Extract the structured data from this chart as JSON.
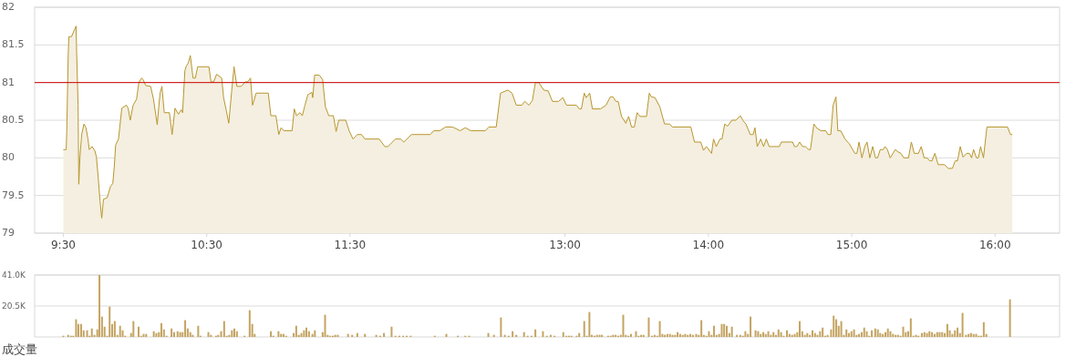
{
  "chart_data": [
    {
      "type": "area",
      "color": "#b8962e",
      "xlim": [
        9.3,
        16.45
      ],
      "ylim": [
        79,
        82
      ],
      "xticks": [
        {
          "value": 9.5,
          "label": "9:30"
        },
        {
          "value": 10.5,
          "label": "10:30"
        },
        {
          "value": 11.5,
          "label": "11:30"
        },
        {
          "value": 13,
          "label": "13:00"
        },
        {
          "value": 14,
          "label": "14:00"
        },
        {
          "value": 15,
          "label": "15:00"
        },
        {
          "value": 16,
          "label": "16:00"
        }
      ],
      "yticks": [
        79,
        79.5,
        80,
        80.5,
        81,
        81.5,
        82
      ],
      "grid": "y",
      "ref_lines": [
        {
          "axis": "y",
          "value": 81,
          "color": "#cc0000"
        }
      ],
      "x": [
        9.5,
        9.52,
        9.524,
        9.534,
        9.539,
        9.557,
        9.589,
        9.593,
        9.603,
        9.608,
        9.616,
        9.628,
        9.644,
        9.658,
        9.672,
        9.681,
        9.701,
        9.721,
        9.731,
        9.743,
        9.756,
        9.768,
        9.78,
        9.806,
        9.829,
        9.845,
        9.855,
        9.865,
        9.885,
        9.908,
        9.94,
        9.952,
        9.967,
        9.987,
        10.011,
        10.027,
        10.046,
        10.056,
        10.076,
        10.109,
        10.129,
        10.155,
        10.165,
        10.175,
        10.188,
        10.204,
        10.24,
        10.259,
        10.279,
        10.303,
        10.322,
        10.332,
        10.348,
        10.358,
        10.372,
        10.386,
        10.405,
        10.421,
        10.437,
        10.516,
        10.53,
        10.549,
        10.569,
        10.605,
        10.618,
        10.638,
        10.654,
        10.674,
        10.691,
        10.711,
        10.741,
        10.77,
        10.786,
        10.806,
        10.82,
        10.845,
        10.93,
        10.948,
        10.983,
        11.003,
        11.019,
        11.038,
        11.096,
        11.111,
        11.127,
        11.151,
        11.167,
        11.186,
        11.206,
        11.234,
        11.24,
        11.253,
        11.285,
        11.309,
        11.328,
        11.352,
        11.384,
        11.403,
        11.421,
        11.47,
        11.494,
        11.521,
        11.551,
        11.58,
        11.604,
        11.704,
        11.743,
        11.764,
        11.817,
        11.853,
        11.875,
        11.929,
        12.06,
        12.084,
        12.127,
        12.166,
        12.216,
        12.267,
        12.304,
        12.343,
        12.444,
        12.468,
        12.52,
        12.55,
        12.601,
        12.63,
        12.66,
        12.699,
        12.72,
        12.748,
        12.772,
        12.793,
        12.817,
        12.852,
        12.882,
        12.912,
        12.955,
        12.985,
        13.01,
        13.079,
        13.099,
        13.114,
        13.134,
        13.148,
        13.172,
        13.191,
        13.247,
        13.286,
        13.316,
        13.335,
        13.355,
        13.371,
        13.394,
        13.424,
        13.444,
        13.464,
        13.483,
        13.503,
        13.523,
        13.568,
        13.588,
        13.602,
        13.627,
        13.661,
        13.694,
        13.73,
        13.749,
        13.878,
        13.903,
        13.947,
        13.966,
        13.986,
        14.022,
        14.036,
        14.055,
        14.081,
        14.095,
        14.114,
        14.134,
        14.164,
        14.193,
        14.223,
        14.243,
        14.262,
        14.292,
        14.312,
        14.325,
        14.341,
        14.365,
        14.385,
        14.404,
        14.424,
        14.495,
        14.509,
        14.588,
        14.601,
        14.617,
        14.637,
        14.657,
        14.677,
        14.7,
        14.712,
        14.736,
        14.759,
        14.785,
        14.819,
        14.834,
        14.854,
        14.87,
        14.89,
        14.903,
        14.923,
        14.953,
        14.982,
        15.022,
        15.036,
        15.051,
        15.071,
        15.091,
        15.107,
        15.126,
        15.146,
        15.166,
        15.18,
        15.199,
        15.219,
        15.233,
        15.249,
        15.268,
        15.304,
        15.323,
        15.343,
        15.363,
        15.396,
        15.416,
        15.436,
        15.465,
        15.485,
        15.505,
        15.525,
        15.544,
        15.56,
        15.58,
        15.603,
        15.647,
        15.673,
        15.702,
        15.722,
        15.738,
        15.757,
        15.777,
        15.801,
        15.821,
        15.836,
        15.85,
        15.87,
        15.884,
        15.899,
        15.919,
        15.943,
        16.087,
        16.107,
        16.12
      ],
      "values": [
        80.11,
        80.11,
        80.35,
        81.36,
        81.61,
        81.61,
        81.75,
        81.4,
        80.7,
        79.65,
        80.01,
        80.31,
        80.45,
        80.4,
        80.25,
        80.11,
        80.15,
        80.09,
        80.01,
        79.75,
        79.43,
        79.2,
        79.45,
        79.47,
        79.62,
        79.66,
        79.87,
        80.17,
        80.25,
        80.66,
        80.7,
        80.66,
        80.5,
        80.7,
        80.78,
        81.0,
        81.06,
        81.04,
        80.96,
        80.95,
        80.78,
        80.44,
        80.66,
        80.86,
        80.95,
        80.6,
        80.6,
        80.31,
        80.66,
        80.58,
        80.64,
        80.6,
        81.16,
        81.22,
        81.26,
        81.36,
        81.06,
        81.06,
        81.21,
        81.21,
        81.01,
        81.01,
        81.11,
        81.06,
        80.8,
        80.62,
        80.46,
        80.88,
        81.21,
        80.95,
        80.95,
        81.01,
        81.01,
        81.06,
        80.7,
        80.86,
        80.86,
        80.56,
        80.56,
        80.31,
        80.4,
        80.36,
        80.36,
        80.65,
        80.56,
        80.6,
        80.56,
        80.7,
        80.84,
        80.87,
        80.8,
        81.1,
        81.1,
        81.04,
        80.68,
        80.56,
        80.56,
        80.35,
        80.5,
        80.5,
        80.36,
        80.25,
        80.31,
        80.31,
        80.25,
        80.25,
        80.15,
        80.15,
        80.25,
        80.25,
        80.21,
        80.31,
        80.31,
        80.36,
        80.36,
        80.41,
        80.41,
        80.36,
        80.4,
        80.36,
        80.36,
        80.41,
        80.41,
        80.86,
        80.9,
        80.86,
        80.7,
        80.7,
        80.75,
        80.7,
        80.76,
        81.0,
        81.0,
        80.9,
        80.89,
        80.75,
        80.75,
        80.8,
        80.7,
        80.7,
        80.65,
        80.65,
        80.86,
        80.8,
        80.86,
        80.65,
        80.65,
        80.7,
        80.81,
        80.81,
        80.75,
        80.75,
        80.55,
        80.46,
        80.55,
        80.41,
        80.41,
        80.6,
        80.55,
        80.55,
        80.86,
        80.81,
        80.8,
        80.68,
        80.45,
        80.45,
        80.41,
        80.41,
        80.21,
        80.21,
        80.1,
        80.15,
        80.06,
        80.25,
        80.15,
        80.25,
        80.25,
        80.45,
        80.42,
        80.5,
        80.5,
        80.56,
        80.49,
        80.45,
        80.31,
        80.31,
        80.4,
        80.15,
        80.25,
        80.15,
        80.25,
        80.15,
        80.15,
        80.21,
        80.21,
        80.15,
        80.15,
        80.21,
        80.15,
        80.15,
        80.11,
        80.11,
        80.45,
        80.39,
        80.36,
        80.36,
        80.31,
        80.31,
        80.7,
        80.81,
        80.36,
        80.36,
        80.25,
        80.19,
        80.06,
        80.06,
        80.21,
        80.0,
        80.15,
        80.21,
        80.0,
        80.15,
        80.0,
        80.0,
        80.11,
        80.11,
        80.15,
        80.11,
        80.0,
        80.11,
        80.08,
        80.06,
        80.0,
        80.0,
        80.21,
        80.06,
        80.06,
        80.15,
        80.0,
        80.0,
        79.96,
        79.96,
        80.06,
        79.91,
        79.91,
        79.86,
        79.86,
        79.96,
        79.96,
        80.15,
        80.01,
        80.06,
        80.06,
        80.0,
        80.11,
        80.0,
        80.0,
        80.15,
        80.0,
        80.41,
        80.41,
        80.31,
        80.31
      ]
    },
    {
      "type": "bar",
      "color": "#c4a462",
      "xlim": [
        9.3,
        16.45
      ],
      "ylim": [
        0,
        41000
      ],
      "yticks": [
        {
          "value": 20500,
          "label": "20.5K"
        },
        {
          "value": 41000,
          "label": "41.0K"
        }
      ],
      "grid": "y",
      "tick_labels": "y",
      "xlabel": "成交量",
      "x": [
        9.5,
        9.534,
        9.553,
        9.569,
        9.589,
        9.605,
        9.624,
        9.642,
        9.666,
        9.683,
        9.699,
        9.717,
        9.737,
        9.752,
        9.77,
        9.788,
        9.806,
        9.823,
        9.841,
        9.859,
        9.877,
        9.896,
        9.914,
        9.932,
        9.973,
        9.989,
        10.025,
        10.042,
        10.06,
        10.078,
        10.131,
        10.149,
        10.167,
        10.184,
        10.202,
        10.22,
        10.255,
        10.273,
        10.297,
        10.315,
        10.332,
        10.35,
        10.368,
        10.386,
        10.403,
        10.441,
        10.457,
        10.512,
        10.53,
        10.565,
        10.581,
        10.601,
        10.622,
        10.64,
        10.658,
        10.676,
        10.693,
        10.711,
        10.764,
        10.8,
        10.818,
        10.835,
        10.948,
        10.965,
        11.001,
        11.019,
        11.036,
        11.054,
        11.107,
        11.125,
        11.143,
        11.161,
        11.179,
        11.196,
        11.214,
        11.238,
        11.255,
        11.309,
        11.326,
        11.344,
        11.362,
        11.38,
        11.397,
        11.415,
        11.486,
        11.515,
        11.551,
        11.604,
        11.683,
        11.71,
        11.737,
        11.79,
        11.817,
        11.844,
        11.871,
        11.896,
        11.923,
        12.091,
        12.172,
        12.252,
        12.304,
        12.331,
        12.465,
        12.504,
        12.553,
        12.58,
        12.607,
        12.634,
        12.66,
        12.714,
        12.739,
        12.766,
        12.793,
        12.846,
        12.873,
        12.9,
        12.927,
        12.988,
        13.01,
        13.028,
        13.045,
        13.081,
        13.099,
        13.134,
        13.152,
        13.17,
        13.187,
        13.205,
        13.223,
        13.241,
        13.258,
        13.3,
        13.318,
        13.335,
        13.353,
        13.371,
        13.389,
        13.406,
        13.424,
        13.442,
        13.46,
        13.495,
        13.513,
        13.531,
        13.548,
        13.584,
        13.607,
        13.625,
        13.643,
        13.661,
        13.679,
        13.696,
        13.714,
        13.732,
        13.75,
        13.768,
        13.785,
        13.803,
        13.821,
        13.838,
        13.856,
        13.874,
        13.892,
        13.915,
        13.933,
        13.951,
        13.968,
        13.986,
        14.004,
        14.022,
        14.039,
        14.057,
        14.075,
        14.093,
        14.11,
        14.128,
        14.146,
        14.164,
        14.199,
        14.223,
        14.241,
        14.258,
        14.276,
        14.294,
        14.329,
        14.347,
        14.365,
        14.383,
        14.4,
        14.418,
        14.436,
        14.454,
        14.471,
        14.489,
        14.507,
        14.525,
        14.548,
        14.566,
        14.584,
        14.602,
        14.62,
        14.637,
        14.655,
        14.673,
        14.69,
        14.708,
        14.726,
        14.744,
        14.761,
        14.779,
        14.797,
        14.815,
        14.832,
        14.856,
        14.874,
        14.892,
        14.909,
        14.927,
        14.945,
        14.963,
        14.98,
        14.998,
        15.016,
        15.034,
        15.051,
        15.069,
        15.087,
        15.105,
        15.122,
        15.14,
        15.164,
        15.182,
        15.199,
        15.217,
        15.235,
        15.252,
        15.27,
        15.288,
        15.306,
        15.323,
        15.341,
        15.359,
        15.377,
        15.394,
        15.412,
        15.43,
        15.448,
        15.465,
        15.489,
        15.507,
        15.525,
        15.542,
        15.56,
        15.578,
        15.596,
        15.613,
        15.631,
        15.649,
        15.667,
        15.684,
        15.702,
        15.72,
        15.738,
        15.755,
        15.773,
        15.797,
        15.815,
        15.832,
        15.85,
        15.868,
        15.886,
        15.903,
        15.921,
        15.939,
        16.104
      ],
      "values": [
        800,
        1400,
        800,
        800,
        11700,
        8600,
        8600,
        4400,
        4400,
        800,
        5600,
        1400,
        5000,
        41000,
        13500,
        6800,
        800,
        20100,
        8600,
        10500,
        1400,
        7400,
        4400,
        800,
        2600,
        10500,
        6800,
        800,
        2000,
        2000,
        3800,
        2600,
        3200,
        9200,
        5000,
        800,
        5600,
        3200,
        3800,
        3200,
        3200,
        11100,
        5600,
        3200,
        1400,
        7400,
        800,
        3200,
        1400,
        800,
        1400,
        3800,
        10500,
        800,
        1400,
        4400,
        5600,
        3800,
        800,
        17700,
        8600,
        2000,
        3800,
        800,
        3800,
        2000,
        2000,
        800,
        2600,
        7400,
        1400,
        2600,
        4400,
        6200,
        3800,
        2000,
        4400,
        3200,
        14700,
        1400,
        800,
        800,
        1400,
        1400,
        2000,
        1400,
        2600,
        2000,
        1400,
        800,
        2600,
        6800,
        800,
        800,
        800,
        800,
        800,
        800,
        2000,
        800,
        800,
        800,
        2600,
        1400,
        12900,
        1400,
        800,
        3800,
        1400,
        3200,
        800,
        800,
        5000,
        3800,
        800,
        1400,
        800,
        3200,
        800,
        800,
        800,
        800,
        2600,
        10500,
        800,
        16500,
        1400,
        800,
        1400,
        1400,
        1400,
        800,
        800,
        1400,
        1400,
        800,
        1400,
        14700,
        1400,
        800,
        2000,
        3800,
        800,
        1400,
        1400,
        12900,
        800,
        1400,
        800,
        10500,
        2000,
        1400,
        2000,
        2000,
        1400,
        1400,
        3200,
        2000,
        1400,
        2000,
        1400,
        2000,
        1400,
        2000,
        1400,
        11100,
        1400,
        800,
        3800,
        1400,
        7400,
        1400,
        2000,
        8600,
        8600,
        7400,
        2600,
        6800,
        1400,
        1400,
        800,
        3800,
        2000,
        13500,
        4400,
        3800,
        2000,
        3200,
        2000,
        3800,
        1400,
        3200,
        1400,
        5000,
        3200,
        800,
        4400,
        2000,
        1400,
        2000,
        3200,
        10500,
        3800,
        1400,
        2600,
        1400,
        4400,
        2600,
        1400,
        3800,
        6200,
        800,
        1400,
        5000,
        14100,
        11700,
        7400,
        10500,
        1400,
        5000,
        2600,
        3800,
        5000,
        1400,
        2000,
        3200,
        6200,
        3800,
        800,
        4400,
        5600,
        5000,
        2600,
        2000,
        3200,
        5600,
        3800,
        2000,
        1400,
        1400,
        800,
        6800,
        3200,
        3800,
        12300,
        800,
        1400,
        800,
        2600,
        3200,
        2600,
        3800,
        3200,
        2000,
        3200,
        3200,
        3200,
        2600,
        8600,
        4400,
        2000,
        4400,
        6200,
        2600,
        15900,
        1400,
        2000,
        2600,
        2000,
        2000,
        800,
        800,
        9800,
        2000,
        24900
      ]
    }
  ]
}
